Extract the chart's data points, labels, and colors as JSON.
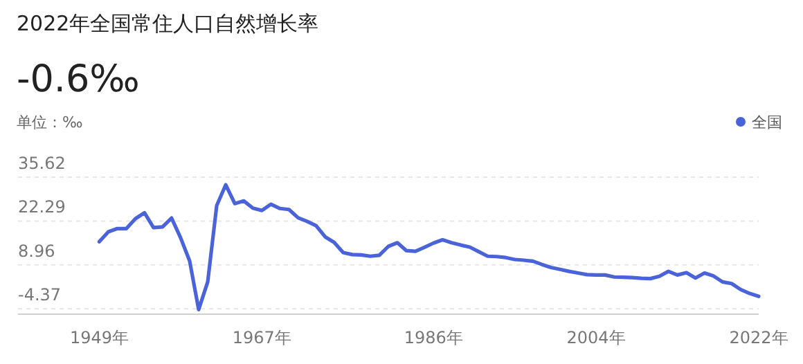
{
  "chart_data": {
    "type": "line",
    "title": "2022年全国常住人口自然增长率",
    "subtitle": "-0.6‰",
    "ylabel": "单位：‰",
    "x": [
      1949,
      1950,
      1951,
      1952,
      1953,
      1954,
      1955,
      1956,
      1957,
      1958,
      1959,
      1960,
      1961,
      1962,
      1963,
      1964,
      1965,
      1966,
      1967,
      1968,
      1969,
      1970,
      1971,
      1972,
      1973,
      1974,
      1975,
      1976,
      1977,
      1978,
      1979,
      1980,
      1981,
      1982,
      1983,
      1984,
      1985,
      1986,
      1987,
      1988,
      1989,
      1990,
      1991,
      1992,
      1993,
      1994,
      1995,
      1996,
      1997,
      1998,
      1999,
      2000,
      2001,
      2002,
      2003,
      2004,
      2005,
      2006,
      2007,
      2008,
      2009,
      2010,
      2011,
      2012,
      2013,
      2014,
      2015,
      2016,
      2017,
      2018,
      2019,
      2020,
      2021,
      2022
    ],
    "series": [
      {
        "name": "全国",
        "color": "#4a63d8",
        "values": [
          16.0,
          19.0,
          20.0,
          20.0,
          23.0,
          24.8,
          20.3,
          20.5,
          23.2,
          17.2,
          10.2,
          -4.6,
          3.8,
          27.0,
          33.3,
          27.6,
          28.4,
          26.2,
          25.5,
          27.4,
          26.1,
          25.8,
          23.3,
          22.2,
          20.9,
          17.5,
          15.8,
          12.7,
          12.1,
          12.0,
          11.6,
          11.9,
          14.6,
          15.7,
          13.3,
          13.1,
          14.3,
          15.6,
          16.6,
          15.7,
          15.0,
          14.4,
          13.0,
          11.6,
          11.5,
          11.2,
          10.6,
          10.4,
          10.1,
          9.1,
          8.2,
          7.6,
          7.0,
          6.5,
          6.0,
          5.9,
          5.9,
          5.3,
          5.2,
          5.1,
          4.9,
          4.8,
          5.5,
          7.0,
          5.9,
          6.6,
          5.0,
          6.5,
          5.6,
          3.8,
          3.3,
          1.5,
          0.3,
          -0.6
        ]
      }
    ],
    "xlim": [
      1940,
      2022
    ],
    "xticks": [
      {
        "value": 1949,
        "label": "1949年"
      },
      {
        "value": 1967,
        "label": "1967年"
      },
      {
        "value": 1986,
        "label": "1986年"
      },
      {
        "value": 2004,
        "label": "2004年"
      },
      {
        "value": 2022,
        "label": "2022年"
      }
    ],
    "ylim": [
      -6,
      35.62
    ],
    "yticks": [
      35.62,
      22.29,
      8.96,
      -4.37
    ],
    "grid": "y",
    "legend": "top right",
    "marker": "none",
    "line_style": "solid"
  }
}
